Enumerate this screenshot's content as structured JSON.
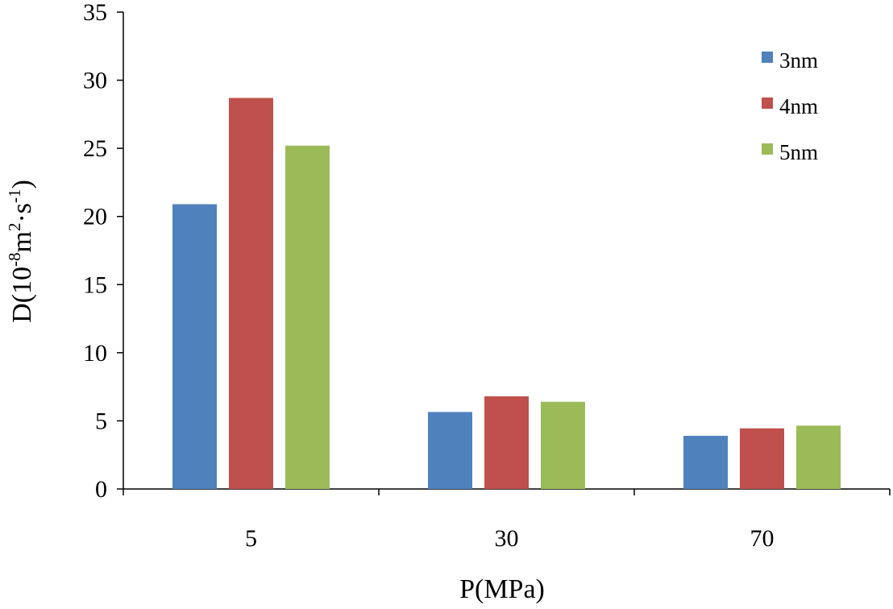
{
  "chart_data": {
    "type": "bar",
    "categories": [
      "5",
      "30",
      "70"
    ],
    "series": [
      {
        "name": "3nm",
        "color": "#4f81bd",
        "values": [
          20.9,
          5.65,
          3.9
        ]
      },
      {
        "name": "4nm",
        "color": "#c0504d",
        "values": [
          28.7,
          6.8,
          4.45
        ]
      },
      {
        "name": "5nm",
        "color": "#9bbb59",
        "values": [
          25.2,
          6.4,
          4.65
        ]
      }
    ],
    "xlabel": "P(MPa)",
    "ylabel": {
      "base": "D(10",
      "exp1": "-8",
      "mid": "m",
      "exp2": "2",
      "mid2": "·s",
      "exp3": "-1",
      "end": ")"
    },
    "ylim": [
      0,
      35
    ],
    "yticks": [
      "0",
      "5",
      "10",
      "15",
      "20",
      "25",
      "30",
      "35"
    ],
    "grid": false,
    "legend_position": "top-right"
  }
}
